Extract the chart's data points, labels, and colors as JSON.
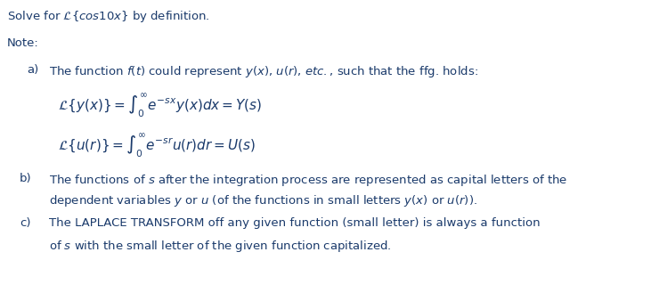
{
  "title_line": "Solve for $\\mathcal{L}\\{cos10x\\}$ by definition.",
  "note_label": "Note:",
  "item_a_label": "a)",
  "item_a_text": "The function $f(t)$ could represent $y(x)$, $u(r)$, $etc.$, such that the ffg. holds:",
  "formula_1": "$\\mathcal{L}\\{y(x)\\} = \\int_0^{\\infty} e^{-sx}y(x)dx = Y(s)$",
  "formula_2": "$\\mathcal{L}\\{u(r)\\} = \\int_0^{\\infty} e^{-sr}u(r)dr = U(s)$",
  "item_b_label": "b)",
  "item_b_line1": "The functions of $s$ after the integration process are represented as capital letters of the",
  "item_b_line2": "dependent variables $y$ or $u$ (of the functions in small letters $y(x)$ or $u(r)$).",
  "item_c_label": "c)",
  "item_c_line1": "The LAPLACE TRANSFORM off any given function (small letter) is always a function",
  "item_c_line2": "of $s$ with the small letter of the given function capitalized.",
  "bg_color": "#ffffff",
  "text_color": "#1a3a6b",
  "font_size": 9.5,
  "formula_font_size": 11.0,
  "fig_width": 7.4,
  "fig_height": 3.38,
  "dpi": 100
}
